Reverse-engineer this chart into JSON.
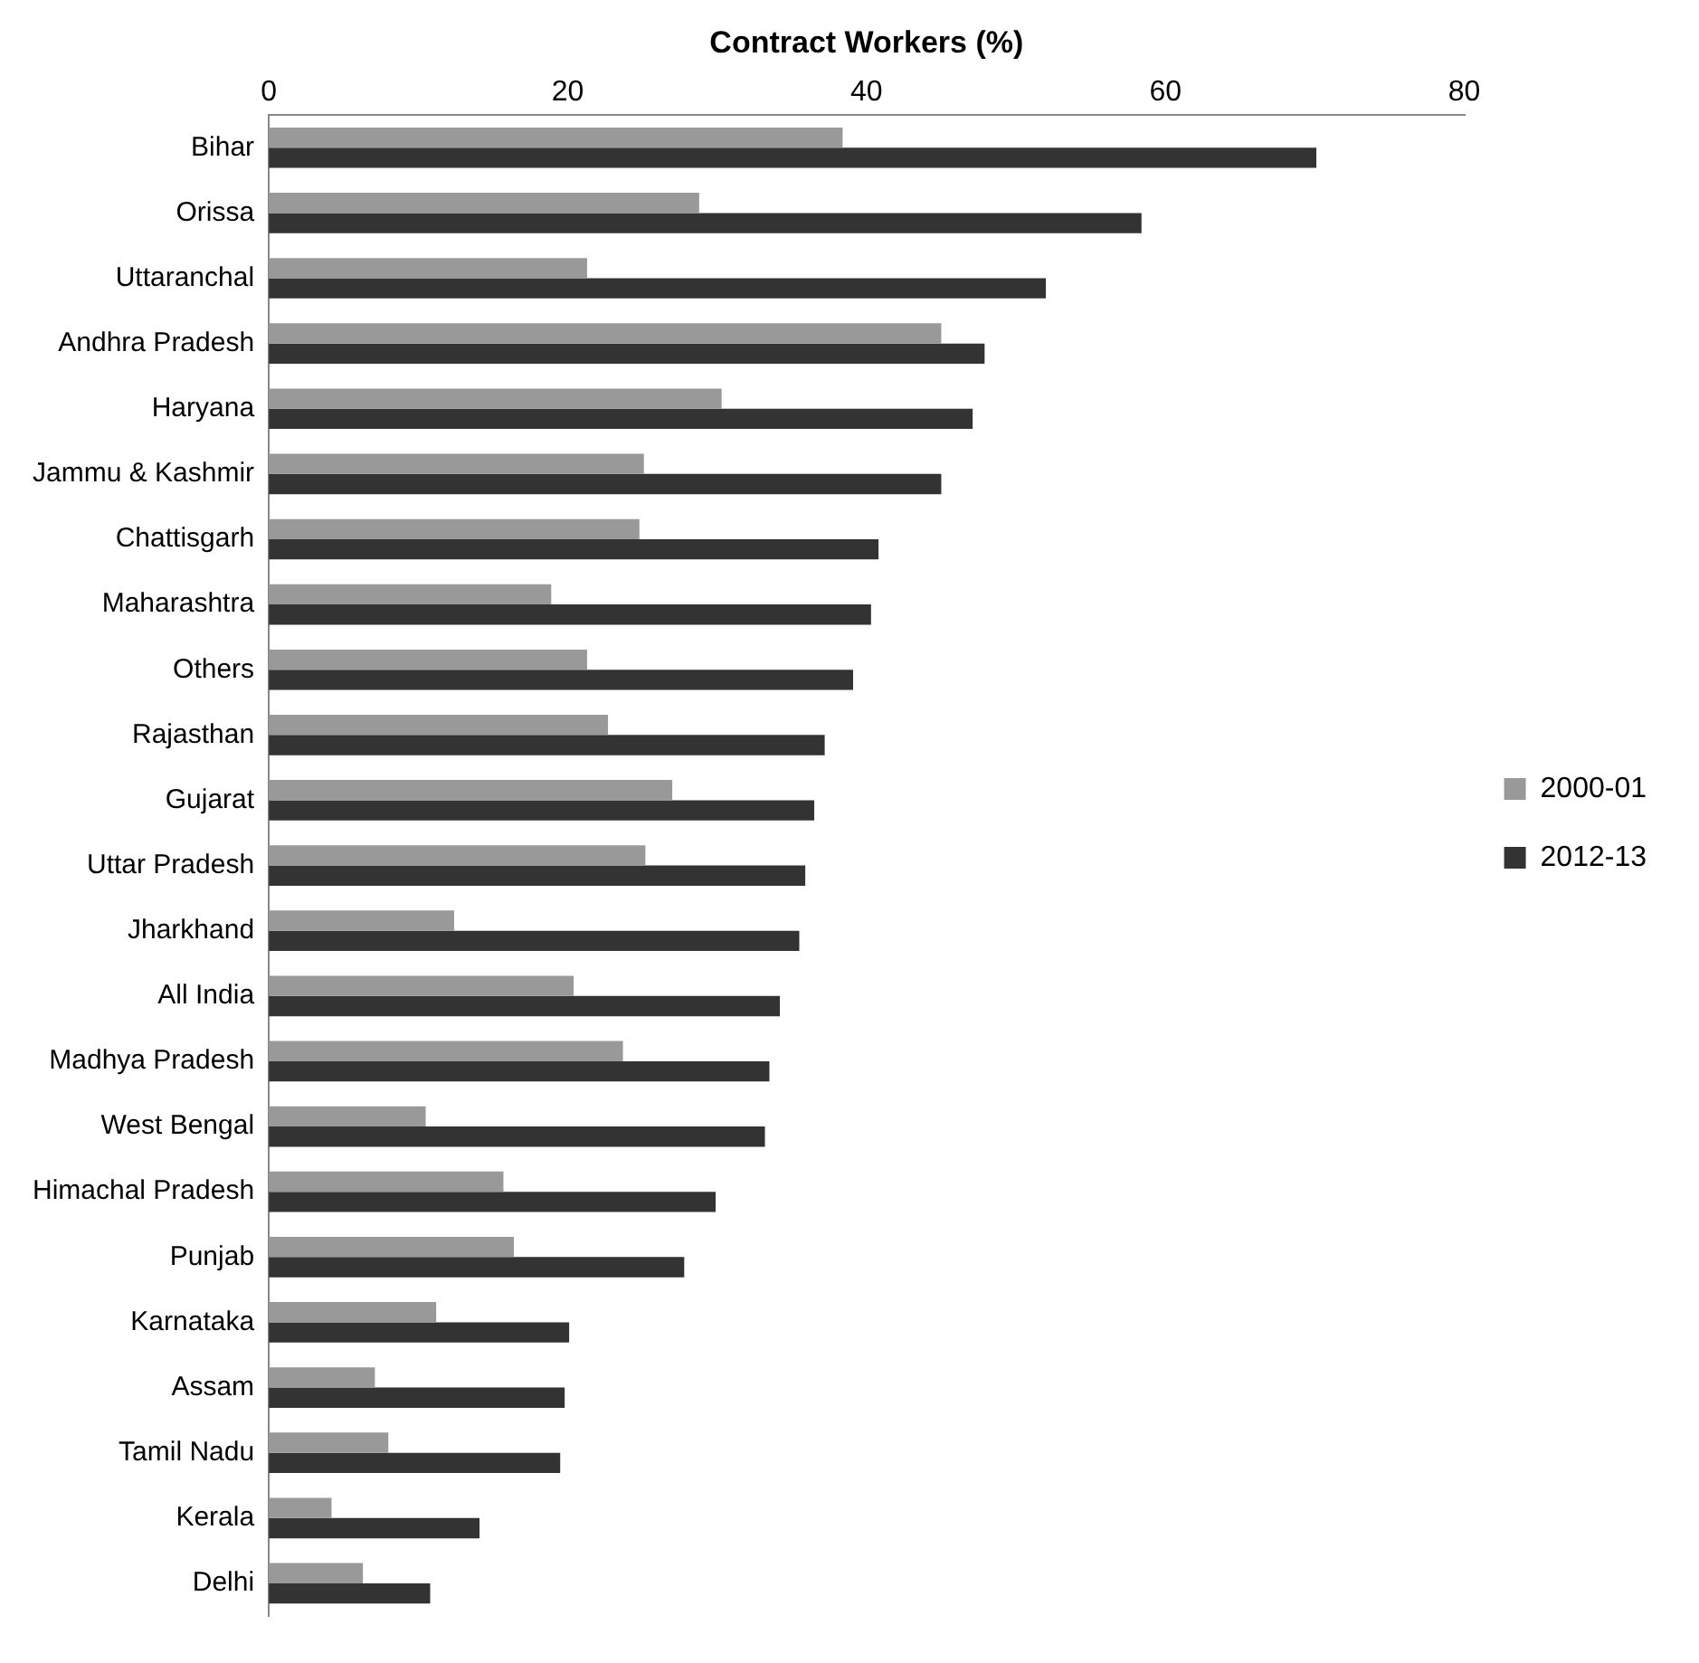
{
  "chart_data": {
    "type": "bar",
    "orientation": "horizontal",
    "xlabel": "Contract Workers (%)",
    "categories": [
      "Bihar",
      "Orissa",
      "Uttaranchal",
      "Andhra Pradesh",
      "Haryana",
      "Jammu & Kashmir",
      "Chattisgarh",
      "Maharashtra",
      "Others",
      "Rajasthan",
      "Gujarat",
      "Uttar Pradesh",
      "Jharkhand",
      "All India",
      "Madhya Pradesh",
      "West Bengal",
      "Himachal Pradesh",
      "Punjab",
      "Karnataka",
      "Assam",
      "Tamil Nadu",
      "Kerala",
      "Delhi"
    ],
    "series": [
      {
        "name": "2000-01",
        "color": "#999999",
        "values": [
          38.4,
          28.8,
          21.3,
          45.0,
          30.3,
          25.1,
          24.8,
          18.9,
          21.3,
          22.7,
          27.0,
          25.2,
          12.4,
          20.4,
          23.7,
          10.5,
          15.7,
          16.4,
          11.2,
          7.1,
          8.0,
          4.2,
          6.3
        ]
      },
      {
        "name": "2012-13",
        "color": "#333333",
        "values": [
          70.1,
          58.4,
          52.0,
          47.9,
          47.1,
          45.0,
          40.8,
          40.3,
          39.1,
          37.2,
          36.5,
          35.9,
          35.5,
          34.2,
          33.5,
          33.2,
          29.9,
          27.8,
          20.1,
          19.8,
          19.5,
          14.1,
          10.8
        ]
      }
    ],
    "xlim": [
      0,
      80
    ],
    "xticks": [
      0,
      20,
      40,
      60,
      80
    ],
    "grid": false,
    "legend": "right"
  }
}
